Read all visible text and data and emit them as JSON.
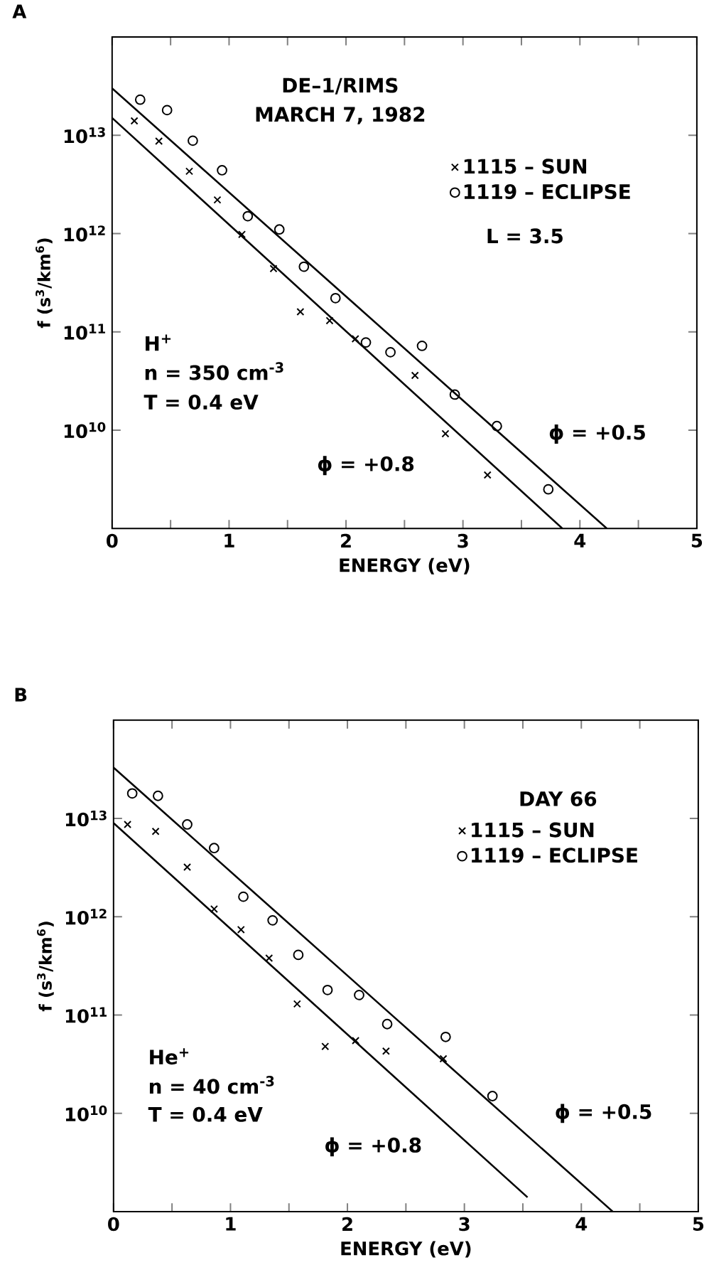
{
  "chart_data": [
    {
      "type": "scatter",
      "title": "A",
      "xlabel": "ENERGY (eV)",
      "ylabel": "f (s$^{3}$/km$^{6}$)",
      "xlim": [
        0,
        5
      ],
      "ylim": [
        1000000000.0,
        100000000000000.0
      ],
      "log": "y",
      "legend": "top right",
      "xticks": [
        0,
        {
          "value": 0.5,
          "label": null
        },
        1,
        {
          "value": 1.5,
          "label": null
        },
        2,
        {
          "value": 2.5,
          "label": null
        },
        3,
        {
          "value": 3.5,
          "label": null
        },
        4,
        {
          "value": 4.5,
          "label": null
        },
        5
      ],
      "yticks": [
        {
          "value": 10000000000.0,
          "label": "10$^{10}$"
        },
        {
          "value": 100000000000.0,
          "label": "10$^{11}$"
        },
        {
          "value": 1000000000000.0,
          "label": "10$^{12}$"
        },
        {
          "value": 10000000000000.0,
          "label": "10$^{13}$"
        }
      ],
      "series": [
        {
          "name": "1115 – SUN",
          "marker": "cross",
          "color": "#000000",
          "x": [
            0.19,
            0.4,
            0.66,
            0.9,
            1.11,
            1.38,
            1.61,
            1.86,
            2.08,
            2.59,
            2.85,
            3.21
          ],
          "values": [
            14000000000000.0,
            8700000000000.0,
            4300000000000.0,
            2200000000000.0,
            980000000000.0,
            440000000000.0,
            160000000000.0,
            130000000000.0,
            85000000000.0,
            36000000000.0,
            9200000000.0,
            3500000000.0
          ]
        },
        {
          "name": "1119 – ECLIPSE",
          "marker": "circle",
          "color": "#000000",
          "x": [
            0.24,
            0.47,
            0.69,
            0.94,
            1.16,
            1.43,
            1.64,
            1.91,
            2.17,
            2.38,
            2.65,
            2.93,
            3.29,
            3.73
          ],
          "values": [
            23000000000000.0,
            18000000000000.0,
            8800000000000.0,
            4400000000000.0,
            1500000000000.0,
            1100000000000.0,
            460000000000.0,
            220000000000.0,
            78000000000.0,
            62000000000.0,
            72000000000.0,
            23000000000.0,
            11000000000.0,
            2500000000.0
          ]
        },
        {
          "type": "line",
          "marker": "none",
          "line_style": "solid",
          "color": "#000000",
          "x": [
            0,
            3.85
          ],
          "values": [
            15000000000000.0,
            1000000000.0
          ]
        },
        {
          "type": "line",
          "marker": "none",
          "line_style": "solid",
          "color": "#000000",
          "x": [
            0,
            4.23
          ],
          "values": [
            30000000000000.0,
            1000000000.0
          ]
        }
      ],
      "annotations": [
        "DE–1/RIMS",
        "MARCH 7, 1982",
        "L = 3.5",
        "H$^{+}$",
        "n = 350 cm$^{-3}$",
        "T = 0.4 eV",
        "ϕ = +0.8",
        "ϕ = +0.5"
      ]
    },
    {
      "type": "scatter",
      "title": "B",
      "xlabel": "ENERGY (eV)",
      "ylabel": "f (s$^{3}$/km$^{6}$)",
      "xlim": [
        0,
        5
      ],
      "ylim": [
        1000000000.0,
        100000000000000.0
      ],
      "log": "y",
      "legend": "top right",
      "xticks": [
        0,
        {
          "value": 0.5,
          "label": null
        },
        1,
        {
          "value": 1.5,
          "label": null
        },
        2,
        {
          "value": 2.5,
          "label": null
        },
        3,
        {
          "value": 3.5,
          "label": null
        },
        4,
        {
          "value": 4.5,
          "label": null
        },
        5
      ],
      "yticks": [
        {
          "value": 10000000000.0,
          "label": "10$^{10}$"
        },
        {
          "value": 100000000000.0,
          "label": "10$^{11}$"
        },
        {
          "value": 1000000000000.0,
          "label": "10$^{12}$"
        },
        {
          "value": 10000000000000.0,
          "label": "10$^{13}$"
        }
      ],
      "series": [
        {
          "name": "1115 – SUN",
          "marker": "cross",
          "color": "#000000",
          "x": [
            0.12,
            0.36,
            0.63,
            0.86,
            1.09,
            1.33,
            1.57,
            1.81,
            2.07,
            2.33,
            2.82
          ],
          "values": [
            8700000000000.0,
            7400000000000.0,
            3200000000000.0,
            1200000000000.0,
            740000000000.0,
            380000000000.0,
            130000000000.0,
            48000000000.0,
            55000000000.0,
            43000000000.0,
            36000000000.0
          ]
        },
        {
          "name": "1119 – ECLIPSE",
          "marker": "circle",
          "color": "#000000",
          "x": [
            0.16,
            0.38,
            0.63,
            0.86,
            1.11,
            1.36,
            1.58,
            1.83,
            2.1,
            2.34,
            2.84,
            3.24
          ],
          "values": [
            18000000000000.0,
            17000000000000.0,
            8700000000000.0,
            5000000000000.0,
            1600000000000.0,
            920000000000.0,
            410000000000.0,
            180000000000.0,
            160000000000.0,
            81000000000.0,
            60000000000.0,
            15000000000.0
          ]
        },
        {
          "type": "line",
          "marker": "none",
          "line_style": "solid",
          "color": "#000000",
          "x": [
            0,
            3.54
          ],
          "values": [
            9000000000000.0,
            1400000000.0
          ]
        },
        {
          "type": "line",
          "marker": "none",
          "line_style": "solid",
          "color": "#000000",
          "x": [
            0,
            4.27
          ],
          "values": [
            33000000000000.0,
            1000000000.0
          ]
        }
      ],
      "annotations": [
        "DAY 66",
        "He$^{+}$",
        "n = 40 cm$^{-3}$",
        "T = 0.4 eV",
        "ϕ = +0.8",
        "ϕ = +0.5"
      ]
    }
  ]
}
